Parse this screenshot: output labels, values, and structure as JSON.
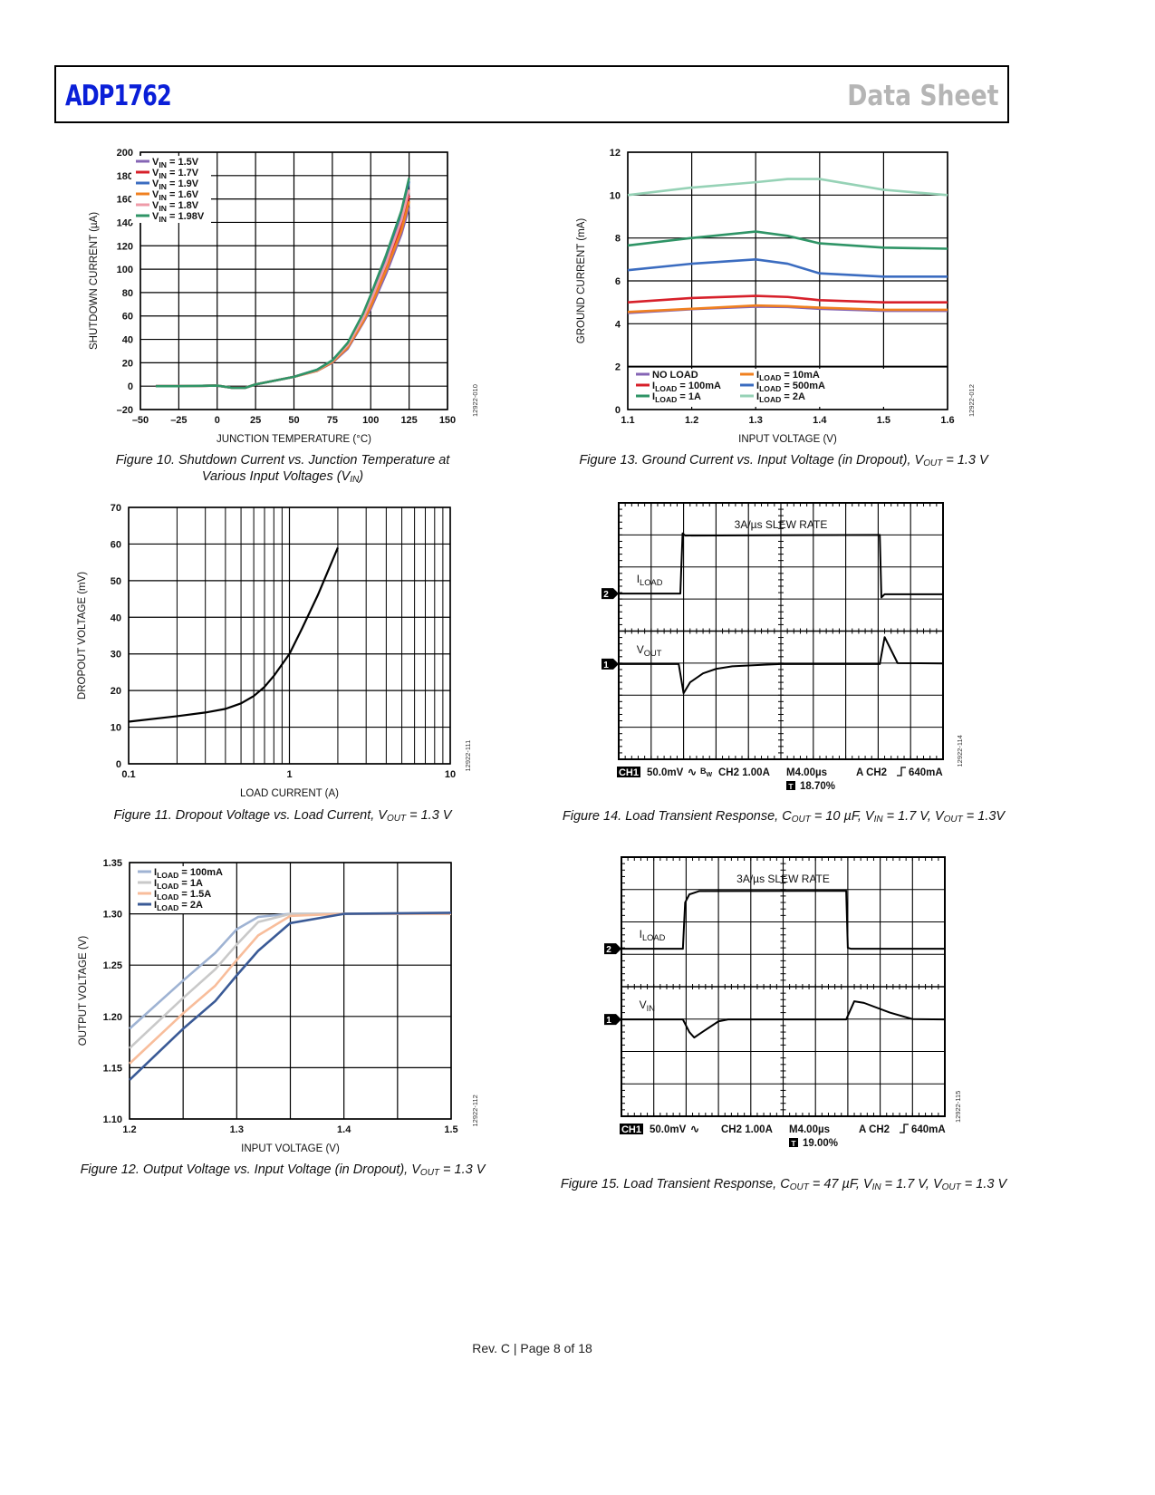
{
  "header": {
    "title": "ADP1762",
    "doc_type": "Data Sheet"
  },
  "footer": "Rev. C | Page 8 of 18",
  "captions": {
    "fig10": [
      {
        "t": "Figure 10. Shutdown Current vs. Junction Temperature at Various Input Voltages (V"
      },
      {
        "t": "IN",
        "sub": true
      },
      {
        "t": ")"
      }
    ],
    "fig11": [
      {
        "t": "Figure 11. Dropout Voltage vs. Load Current, V"
      },
      {
        "t": "OUT",
        "sub": true
      },
      {
        "t": " = 1.3 V"
      }
    ],
    "fig12": [
      {
        "t": "Figure 12. Output Voltage vs. Input Voltage (in Dropout), V"
      },
      {
        "t": "OUT",
        "sub": true
      },
      {
        "t": " = 1.3 V"
      }
    ],
    "fig13": [
      {
        "t": "Figure 13. Ground Current vs. Input Voltage (in Dropout), V"
      },
      {
        "t": "OUT",
        "sub": true
      },
      {
        "t": " = 1.3 V"
      }
    ],
    "fig14": [
      {
        "t": "Figure 14. Load Transient Response, C"
      },
      {
        "t": "OUT",
        "sub": true
      },
      {
        "t": " = 10 µF, V"
      },
      {
        "t": "IN",
        "sub": true
      },
      {
        "t": " = 1.7 V, V"
      },
      {
        "t": "OUT",
        "sub": true
      },
      {
        "t": " = 1.3V"
      }
    ],
    "fig15": [
      {
        "t": "Figure 15. Load Transient Response, C"
      },
      {
        "t": "OUT",
        "sub": true
      },
      {
        "t": " = 47 µF, V"
      },
      {
        "t": "IN",
        "sub": true
      },
      {
        "t": " = 1.7 V, V"
      },
      {
        "t": "OUT",
        "sub": true
      },
      {
        "t": " = 1.3 V"
      }
    ]
  },
  "chart_data": [
    {
      "id": "fig10",
      "type": "line",
      "figure_id": "12922-010",
      "xlabel": "JUNCTION TEMPERATURE (°C)",
      "ylabel": "SHUTDOWN CURRENT (µA)",
      "xlim": [
        -50,
        150
      ],
      "ylim": [
        -20,
        200
      ],
      "xticks": [
        -50,
        -25,
        0,
        25,
        50,
        75,
        100,
        125,
        150
      ],
      "xtick_labels": [
        "–50",
        "–25",
        "0",
        "25",
        "50",
        "75",
        "100",
        "125",
        "150"
      ],
      "yticks": [
        -20,
        0,
        20,
        40,
        60,
        80,
        100,
        120,
        140,
        160,
        180,
        200
      ],
      "ytick_labels": [
        "–20",
        "0",
        "20",
        "40",
        "60",
        "80",
        "100",
        "120",
        "140",
        "160",
        "180",
        "200"
      ],
      "grid": true,
      "legend": "top-left",
      "x": [
        -40,
        -25,
        0,
        10,
        18,
        25,
        50,
        65,
        75,
        85,
        95,
        100,
        110,
        120,
        125
      ],
      "series": [
        {
          "label": [
            "V",
            "IN",
            " = 1.5V"
          ],
          "color": "#8565b5",
          "values": [
            0,
            0,
            0.5,
            -1.5,
            -1.5,
            1.5,
            8,
            13,
            20,
            32,
            54,
            66,
            96,
            130,
            153
          ]
        },
        {
          "label": [
            "V",
            "IN",
            " = 1.7V"
          ],
          "color": "#d7202a",
          "values": [
            0,
            0,
            0.5,
            -1.5,
            -1.5,
            1.5,
            8,
            13.5,
            21,
            34,
            57,
            71,
            102,
            138,
            163
          ]
        },
        {
          "label": [
            "V",
            "IN",
            " = 1.9V"
          ],
          "color": "#3b6cc0",
          "values": [
            0,
            0,
            0.5,
            -1.5,
            -1.5,
            1.5,
            8,
            14,
            22,
            36,
            60,
            75,
            109,
            146,
            175
          ]
        },
        {
          "label": [
            "V",
            "IN",
            " = 1.6V"
          ],
          "color": "#f08020",
          "values": [
            0,
            0,
            0.5,
            -1.5,
            -1.5,
            1.5,
            8,
            13,
            20.5,
            33,
            55,
            68,
            99,
            133,
            158
          ]
        },
        {
          "label": [
            "V",
            "IN",
            " = 1.8V"
          ],
          "color": "#ef9ba8",
          "values": [
            0,
            0,
            0.5,
            -1.5,
            -1.5,
            1.5,
            8,
            13.5,
            21.5,
            35,
            58,
            73,
            105,
            142,
            168
          ]
        },
        {
          "label": [
            "V",
            "IN",
            " = 1.98V"
          ],
          "color": "#2f9466",
          "values": [
            0,
            0,
            0.5,
            -1.5,
            -1.5,
            1.5,
            8,
            14,
            22,
            37,
            62,
            78,
            112,
            150,
            178
          ]
        }
      ]
    },
    {
      "id": "fig11",
      "type": "line",
      "figure_id": "12922-111",
      "xscale": "log",
      "xlabel": "LOAD CURRENT (A)",
      "ylabel": "DROPOUT VOLTAGE (mV)",
      "xlim": [
        0.1,
        10
      ],
      "ylim": [
        0,
        70
      ],
      "xticks": [
        0.1,
        1,
        10
      ],
      "xtick_labels": [
        "0.1",
        "1",
        "10"
      ],
      "x_minor": [
        0.2,
        0.3,
        0.4,
        0.5,
        0.6,
        0.7,
        0.8,
        0.9,
        2,
        3,
        4,
        5,
        6,
        7,
        8,
        9
      ],
      "yticks": [
        0,
        10,
        20,
        30,
        40,
        50,
        60,
        70
      ],
      "ytick_labels": [
        "0",
        "10",
        "20",
        "30",
        "40",
        "50",
        "60",
        "70"
      ],
      "grid": true,
      "x": [
        0.1,
        0.2,
        0.3,
        0.4,
        0.5,
        0.6,
        0.7,
        0.8,
        1,
        1.2,
        1.5,
        2
      ],
      "series": [
        {
          "label": [
            "",
            "",
            ""
          ],
          "color": "#000000",
          "values": [
            11.5,
            13,
            14,
            15,
            16.5,
            18.5,
            21,
            24,
            30,
            37,
            46,
            59
          ]
        }
      ]
    },
    {
      "id": "fig12",
      "type": "line",
      "figure_id": "12922-112",
      "xlabel": "INPUT VOLTAGE (V)",
      "ylabel": "OUTPUT VOLTAGE (V)",
      "xlim": [
        1.2,
        1.5
      ],
      "ylim": [
        1.1,
        1.35
      ],
      "xticks": [
        1.2,
        1.3,
        1.4,
        1.5
      ],
      "xtick_labels": [
        "1.2",
        "1.3",
        "1.4",
        "1.5"
      ],
      "xgrid": [
        1.2,
        1.25,
        1.3,
        1.35,
        1.4,
        1.45,
        1.5
      ],
      "yticks": [
        1.1,
        1.15,
        1.2,
        1.25,
        1.3,
        1.35
      ],
      "ytick_labels": [
        "1.10",
        "1.15",
        "1.20",
        "1.25",
        "1.30",
        "1.35"
      ],
      "grid": true,
      "legend": "top-left",
      "x": [
        1.2,
        1.25,
        1.28,
        1.3,
        1.32,
        1.35,
        1.4,
        1.5
      ],
      "series": [
        {
          "label": [
            "I",
            "LOAD",
            " = 100mA"
          ],
          "color": "#9fb3d3",
          "values": [
            1.188,
            1.235,
            1.262,
            1.285,
            1.297,
            1.3,
            1.3,
            1.3
          ]
        },
        {
          "label": [
            "I",
            "LOAD",
            " = 1A"
          ],
          "color": "#c9c9c9",
          "values": [
            1.169,
            1.218,
            1.246,
            1.27,
            1.292,
            1.3,
            1.3,
            1.3
          ]
        },
        {
          "label": [
            "I",
            "LOAD",
            " = 1.5A"
          ],
          "color": "#f8bd9b",
          "values": [
            1.154,
            1.203,
            1.23,
            1.255,
            1.279,
            1.298,
            1.3,
            1.3
          ]
        },
        {
          "label": [
            "I",
            "LOAD",
            " = 2A"
          ],
          "color": "#3a5a96",
          "values": [
            1.138,
            1.188,
            1.215,
            1.24,
            1.264,
            1.291,
            1.3,
            1.301
          ]
        }
      ]
    },
    {
      "id": "fig13",
      "type": "line",
      "figure_id": "12922-012",
      "xlabel": "INPUT VOLTAGE (V)",
      "ylabel": "GROUND CURRENT (mA)",
      "xlim": [
        1.1,
        1.6
      ],
      "ylim": [
        0,
        12
      ],
      "xticks": [
        1.1,
        1.2,
        1.3,
        1.4,
        1.5,
        1.6
      ],
      "xtick_labels": [
        "1.1",
        "1.2",
        "1.3",
        "1.4",
        "1.5",
        "1.6"
      ],
      "yticks": [
        0,
        2,
        4,
        6,
        8,
        10,
        12
      ],
      "ytick_labels": [
        "0",
        "2",
        "4",
        "6",
        "8",
        "10",
        "12"
      ],
      "grid": true,
      "legend": "bottom",
      "x": [
        1.1,
        1.2,
        1.3,
        1.35,
        1.4,
        1.5,
        1.6
      ],
      "series": [
        {
          "label": [
            "NO LOAD",
            "",
            ""
          ],
          "color": "#8565b5",
          "values": [
            4.5,
            4.68,
            4.8,
            4.78,
            4.7,
            4.6,
            4.6
          ]
        },
        {
          "label": [
            "I",
            "LOAD",
            " = 100mA"
          ],
          "color": "#d7202a",
          "values": [
            5.0,
            5.2,
            5.3,
            5.25,
            5.1,
            5.0,
            5.0
          ]
        },
        {
          "label": [
            "I",
            "LOAD",
            " = 1A"
          ],
          "color": "#2f9466",
          "values": [
            7.65,
            8.0,
            8.3,
            8.1,
            7.75,
            7.55,
            7.5
          ]
        },
        {
          "label": [
            "I",
            "LOAD",
            " = 10mA"
          ],
          "color": "#f08020",
          "values": [
            4.55,
            4.7,
            4.85,
            4.82,
            4.75,
            4.65,
            4.65
          ]
        },
        {
          "label": [
            "I",
            "LOAD",
            " = 500mA"
          ],
          "color": "#3b6cc0",
          "values": [
            6.5,
            6.8,
            7.0,
            6.8,
            6.35,
            6.2,
            6.2
          ]
        },
        {
          "label": [
            "I",
            "LOAD",
            " = 2A"
          ],
          "color": "#96d2b6",
          "values": [
            10.0,
            10.35,
            10.6,
            10.75,
            10.75,
            10.25,
            10.0
          ]
        }
      ]
    },
    {
      "id": "fig14",
      "type": "line",
      "subtype": "oscilloscope",
      "figure_id": "12922-114",
      "divisions": [
        10,
        8
      ],
      "annotation": "3A/µs SLEW RATE",
      "channels": [
        {
          "marker": "2",
          "label": [
            "I",
            "LOAD"
          ],
          "level": 5.17,
          "trace": [
            [
              0,
              5.17
            ],
            [
              1.9,
              5.17
            ],
            [
              1.97,
              7.05
            ],
            [
              2.05,
              6.98
            ],
            [
              8.05,
              7.0
            ],
            [
              8.1,
              5.05
            ],
            [
              8.2,
              5.15
            ],
            [
              10,
              5.15
            ]
          ]
        },
        {
          "marker": "1",
          "label": [
            "V",
            "OUT"
          ],
          "level": 2.97,
          "trace": [
            [
              0,
              2.97
            ],
            [
              1.85,
              2.97
            ],
            [
              2.0,
              2.06
            ],
            [
              2.2,
              2.4
            ],
            [
              2.6,
              2.68
            ],
            [
              3.0,
              2.82
            ],
            [
              3.5,
              2.9
            ],
            [
              4.5,
              2.95
            ],
            [
              5,
              2.97
            ],
            [
              8.05,
              2.97
            ],
            [
              8.2,
              3.81
            ],
            [
              8.6,
              3.0
            ],
            [
              10,
              2.99
            ]
          ]
        }
      ],
      "status": {
        "ch1_badge": "CH1",
        "ch1_scale": "50.0mV",
        "coupling": "∿",
        "bw": "B",
        "bw_sub": "W",
        "ch2": "CH2 1.00A",
        "time": "M4.00µs",
        "trigger": "A  CH2",
        "trigger_level": "640mA",
        "t_badge": "T",
        "trigger_pos": "18.70%"
      }
    },
    {
      "id": "fig15",
      "type": "line",
      "subtype": "oscilloscope",
      "figure_id": "12922-115",
      "divisions": [
        10,
        8
      ],
      "annotation": "3A/µs SLEW RATE",
      "channels": [
        {
          "marker": "2",
          "label": [
            "I",
            "LOAD"
          ],
          "level": 5.17,
          "trace": [
            [
              0,
              5.17
            ],
            [
              1.9,
              5.17
            ],
            [
              1.97,
              6.6
            ],
            [
              2.1,
              6.85
            ],
            [
              2.4,
              6.95
            ],
            [
              6.95,
              6.96
            ],
            [
              7.0,
              5.2
            ],
            [
              7.1,
              5.17
            ],
            [
              10,
              5.17
            ]
          ]
        },
        {
          "marker": "1",
          "label": [
            "V",
            "IN"
          ],
          "level": 2.99,
          "trace": [
            [
              0,
              2.99
            ],
            [
              1.9,
              2.99
            ],
            [
              2.1,
              2.6
            ],
            [
              2.25,
              2.43
            ],
            [
              2.5,
              2.6
            ],
            [
              3.0,
              2.93
            ],
            [
              3.3,
              2.99
            ],
            [
              6.95,
              2.99
            ],
            [
              7.2,
              3.55
            ],
            [
              7.5,
              3.5
            ],
            [
              8.3,
              3.2
            ],
            [
              9.0,
              3.0
            ],
            [
              10,
              2.99
            ]
          ]
        }
      ],
      "status": {
        "ch1_badge": "CH1",
        "ch1_scale": "50.0mV",
        "coupling": "∿",
        "bw": "",
        "bw_sub": "",
        "ch2": "CH2 1.00A",
        "time": "M4.00µs",
        "trigger": "A  CH2",
        "trigger_level": "640mA",
        "t_badge": "T",
        "trigger_pos": "19.00%"
      }
    }
  ]
}
